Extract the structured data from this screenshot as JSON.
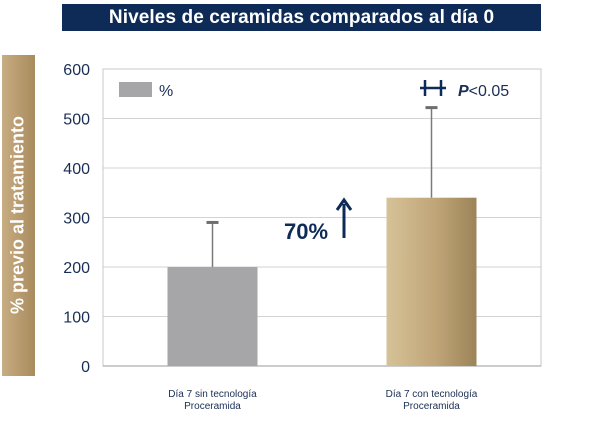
{
  "title": "Niveles de ceramidas comparados al día 0",
  "ylabel": "% previo al tratamiento",
  "legend": {
    "label": "%"
  },
  "annotation": {
    "increase_label": "70%"
  },
  "significance": {
    "symbol": "++",
    "p_label": "P",
    "p_value": "<0.05"
  },
  "colors": {
    "banner": "#0d2b56",
    "bar_gray": "#a6a6a8",
    "bar_gold": "#bfa578",
    "text": "#1a2e55"
  },
  "chart_data": {
    "type": "bar",
    "title": "Niveles de ceramidas comparados al día 0",
    "xlabel": "",
    "ylabel": "% previo al tratamiento",
    "ylim": [
      0,
      600
    ],
    "yticks": [
      0,
      100,
      200,
      300,
      400,
      500,
      600
    ],
    "grid": true,
    "legend_position": "top-left",
    "categories": [
      [
        "Día 7 sin tecnología",
        "Proceramida"
      ],
      [
        "Día 7 con tecnología",
        "Proceramida"
      ]
    ],
    "series": [
      {
        "name": "%",
        "values": [
          200,
          340
        ],
        "error_upper": [
          290,
          522
        ]
      }
    ]
  }
}
